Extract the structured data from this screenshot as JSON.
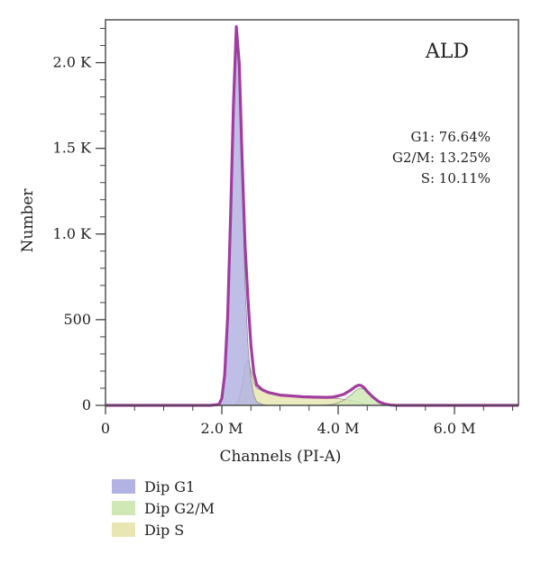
{
  "chart_data": {
    "type": "area",
    "title": "ALD",
    "xlabel": "Channels (PI-A)",
    "ylabel": "Number",
    "xlim": [
      0,
      7100000
    ],
    "ylim": [
      0,
      2250
    ],
    "x_ticks": [
      {
        "value": 0,
        "label": "0"
      },
      {
        "value": 2000000,
        "label": "2.0 M"
      },
      {
        "value": 4000000,
        "label": "4.0 M"
      },
      {
        "value": 6000000,
        "label": "6.0 M"
      }
    ],
    "y_ticks": [
      {
        "value": 0,
        "label": "0"
      },
      {
        "value": 500,
        "label": "500"
      },
      {
        "value": 1000,
        "label": "1.0 K"
      },
      {
        "value": 1500,
        "label": "1.5 K"
      },
      {
        "value": 2000,
        "label": "2.0 K"
      }
    ],
    "stats": [
      "G1: 76.64%",
      "G2/M: 13.25%",
      "S: 10.11%"
    ],
    "grid": false,
    "legend_position": "bottom-left",
    "x": [
      0,
      1800000,
      1950000,
      2000000,
      2050000,
      2100000,
      2150000,
      2200000,
      2250000,
      2300000,
      2350000,
      2400000,
      2450000,
      2500000,
      2550000,
      2600000,
      2700000,
      2800000,
      3000000,
      3200000,
      3400000,
      3600000,
      3800000,
      3900000,
      4000000,
      4100000,
      4200000,
      4300000,
      4350000,
      4400000,
      4450000,
      4500000,
      4600000,
      4700000,
      4800000,
      4900000,
      5000000,
      5200000,
      7100000
    ],
    "series": [
      {
        "name": "Dip G1",
        "color": "#b3b3e3",
        "values": [
          0,
          0,
          5,
          40,
          180,
          520,
          1100,
          1750,
          2200,
          1950,
          1300,
          700,
          350,
          150,
          60,
          20,
          5,
          0,
          0,
          0,
          0,
          0,
          0,
          0,
          0,
          0,
          0,
          0,
          0,
          0,
          0,
          0,
          0,
          0,
          0,
          0,
          0,
          0,
          0
        ]
      },
      {
        "name": "Dip G2/M",
        "color": "#cfe8b5",
        "values": [
          0,
          0,
          0,
          0,
          0,
          0,
          0,
          0,
          0,
          0,
          0,
          0,
          0,
          0,
          0,
          0,
          0,
          0,
          0,
          0,
          0,
          0,
          2,
          6,
          15,
          30,
          55,
          85,
          98,
          100,
          92,
          75,
          45,
          20,
          8,
          2,
          0,
          0,
          0
        ]
      },
      {
        "name": "Dip S",
        "color": "#e8e6b3",
        "values": [
          0,
          0,
          0,
          0,
          0,
          0,
          0,
          0,
          10,
          40,
          120,
          230,
          270,
          200,
          130,
          100,
          85,
          75,
          60,
          55,
          50,
          48,
          45,
          42,
          40,
          35,
          30,
          25,
          20,
          15,
          10,
          6,
          3,
          1,
          0,
          0,
          0,
          0,
          0
        ]
      },
      {
        "name": "",
        "color": "#a23c9e",
        "values": [
          0,
          0,
          5,
          40,
          180,
          520,
          1100,
          1750,
          2210,
          1990,
          1420,
          930,
          620,
          350,
          190,
          120,
          90,
          75,
          60,
          55,
          50,
          48,
          47,
          48,
          55,
          65,
          85,
          110,
          118,
          115,
          102,
          81,
          48,
          21,
          8,
          2,
          0,
          0,
          0
        ]
      }
    ]
  }
}
